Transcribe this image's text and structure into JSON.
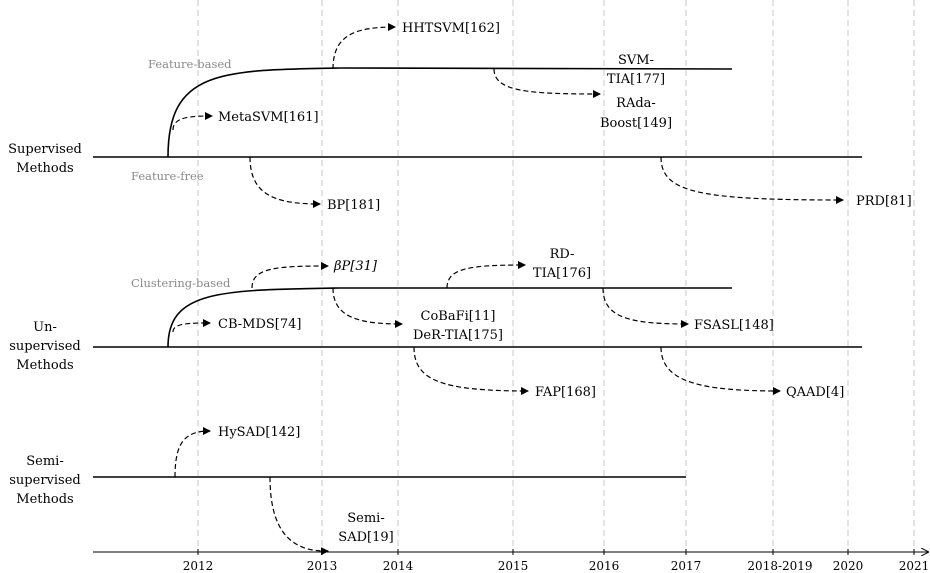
{
  "axis": {
    "years": [
      "2012",
      "2013",
      "2014",
      "2015",
      "2016",
      "2017",
      "2018-2019",
      "2020",
      "2021"
    ]
  },
  "lanes": {
    "supervised": [
      "Supervised",
      "Methods"
    ],
    "unsupervised": [
      "Un-",
      "supervised",
      "Methods"
    ],
    "semi": [
      "Semi-",
      "supervised",
      "Methods"
    ]
  },
  "branches": {
    "feature_based": "Feature-based",
    "feature_free": "Feature-free",
    "clustering_based": "Clustering-based"
  },
  "methods": {
    "hhtsvm": [
      "HHTSVM[162]"
    ],
    "svm_tia": [
      "SVM-",
      "TIA[177]"
    ],
    "rada_boost": [
      "RAda-",
      "Boost[149]"
    ],
    "metasvm": [
      "MetaSVM[161]"
    ],
    "bp": [
      "BP[181]"
    ],
    "prd": [
      "PRD[81]"
    ],
    "beta_p": "βP[31]",
    "rd_tia": [
      "RD-",
      "TIA[176]"
    ],
    "cb_mds": [
      "CB-MDS[74]"
    ],
    "cobafi": [
      "CoBaFi[11]"
    ],
    "der_tia": [
      "DeR-TIA[175]"
    ],
    "fsasl": [
      "FSASL[148]"
    ],
    "fap": [
      "FAP[168]"
    ],
    "qaad": [
      "QAAD[4]"
    ],
    "hysad": [
      "HySAD[142]"
    ],
    "semi_sad": [
      "Semi-",
      "SAD[19]"
    ]
  }
}
